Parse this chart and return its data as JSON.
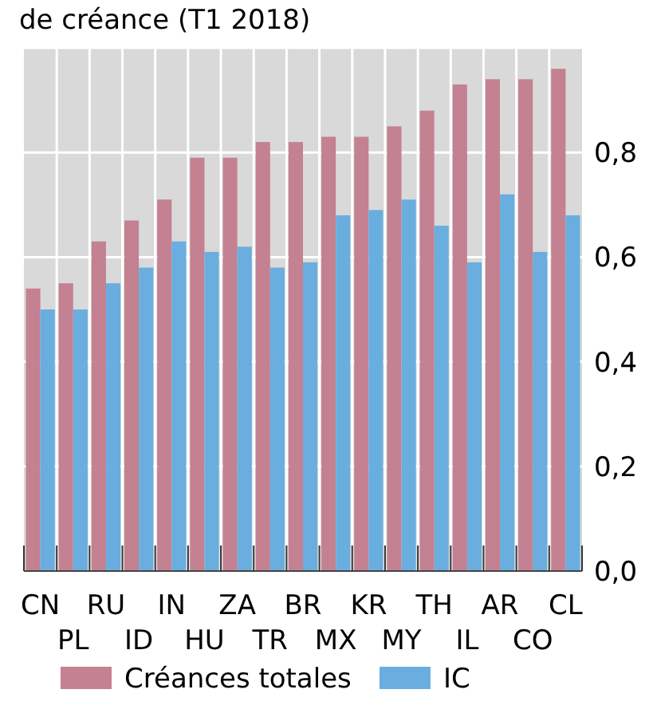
{
  "chart_data": {
    "type": "bar",
    "title": "de créance (T1 2018)",
    "categories": [
      "CN",
      "PL",
      "RU",
      "ID",
      "IN",
      "HU",
      "ZA",
      "TR",
      "BR",
      "MX",
      "KR",
      "MY",
      "TH",
      "IL",
      "AR",
      "CO",
      "CL"
    ],
    "series": [
      {
        "name": "Créances totales",
        "color": "#c48191",
        "values": [
          0.54,
          0.55,
          0.63,
          0.67,
          0.71,
          0.79,
          0.79,
          0.82,
          0.82,
          0.83,
          0.83,
          0.85,
          0.88,
          0.93,
          0.94,
          0.94,
          0.96
        ]
      },
      {
        "name": "IC",
        "color": "#6aaee0",
        "values": [
          0.5,
          0.5,
          0.55,
          0.58,
          0.63,
          0.61,
          0.62,
          0.58,
          0.59,
          0.68,
          0.69,
          0.71,
          0.66,
          0.59,
          0.72,
          0.61,
          0.68
        ]
      }
    ],
    "ylim": [
      0,
      1
    ],
    "yticks": [
      {
        "value": 0,
        "label": "0,0"
      },
      {
        "value": 0.2,
        "label": "0,2"
      },
      {
        "value": 0.4,
        "label": "0,4"
      },
      {
        "value": 0.6,
        "label": "0,6"
      },
      {
        "value": 0.8,
        "label": "0,8"
      }
    ],
    "grid": true,
    "legend": "bottom"
  }
}
